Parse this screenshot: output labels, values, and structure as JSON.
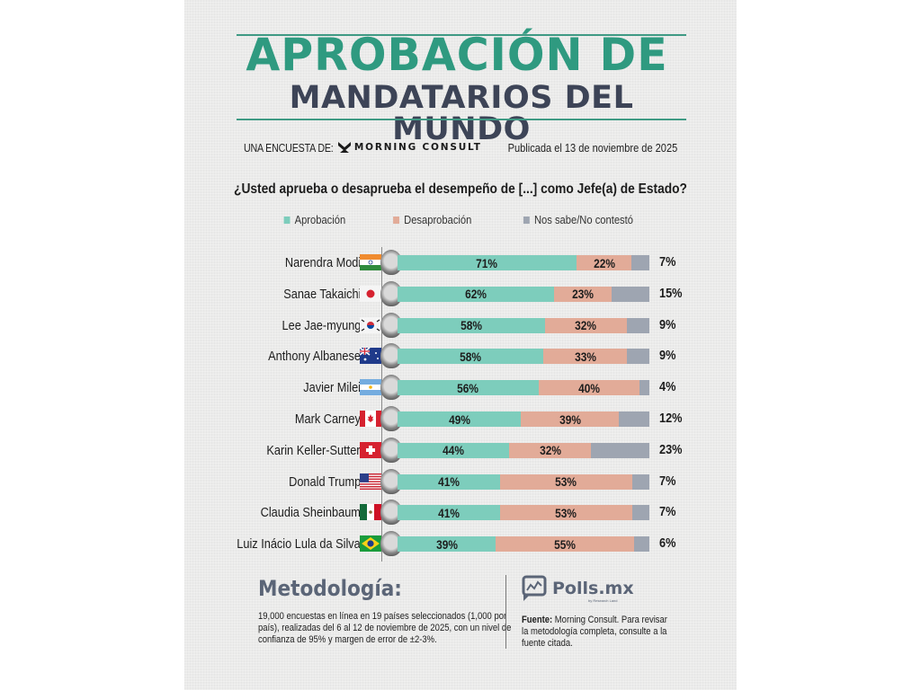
{
  "header": {
    "title_line1": "APROBACIÓN DE",
    "title_line2": "MANDATARIOS DEL MUNDO",
    "byline_prefix": "UNA ENCUESTA DE:",
    "pollster_logo": "MORNING CONSULT",
    "published": "Publicada el 13 de noviembre de 2025"
  },
  "chart_data": {
    "type": "bar",
    "orientation": "horizontal-stacked-100",
    "title": "¿Usted aprueba o desaprueba el desempeño de [...] como Jefe(a) de Estado?",
    "xlabel": "",
    "ylabel": "",
    "xlim": [
      0,
      100
    ],
    "unit": "%",
    "legend_position": "top-center",
    "legend": [
      {
        "name": "Aprobación",
        "color": "#7dcdbc"
      },
      {
        "name": "Desaprobación",
        "color": "#e2ab98"
      },
      {
        "name": "Nos sabe/No contestó",
        "color": "#9ea5b1"
      }
    ],
    "categories": [
      "Narendra Modi",
      "Sanae Takaichi",
      "Lee Jae-myung",
      "Anthony Albanese",
      "Javier Milei",
      "Mark Carney",
      "Karin Keller-Sutter",
      "Donald Trump",
      "Claudia Sheinbaum",
      "Luiz Inácio Lula da Silva"
    ],
    "countries": [
      "india",
      "japan",
      "south-korea",
      "australia",
      "argentina",
      "canada",
      "switzerland",
      "usa",
      "mexico",
      "brazil"
    ],
    "series": [
      {
        "name": "Aprobación",
        "values": [
          71,
          62,
          58,
          58,
          56,
          49,
          44,
          41,
          41,
          39
        ]
      },
      {
        "name": "Desaprobación",
        "values": [
          22,
          23,
          32,
          33,
          40,
          39,
          32,
          53,
          53,
          55
        ]
      },
      {
        "name": "Nos sabe/No contestó",
        "values": [
          7,
          15,
          9,
          9,
          4,
          12,
          23,
          7,
          7,
          6
        ]
      }
    ]
  },
  "footer": {
    "methodology_title": "Metodología:",
    "methodology_text": "19,000 encuestas en línea en 19 países seleccionados (1,000 por país), realizadas del 6 al 12 de noviembre de 2025, con un nivel de confianza de 95% y margen de error de ±2-3%.",
    "brand": "Polls.mx",
    "brand_sub": "by Research Land",
    "source_label": "Fuente:",
    "source_text": " Morning Consult. Para revisar la metodología completa, consulte a la fuente citada."
  }
}
